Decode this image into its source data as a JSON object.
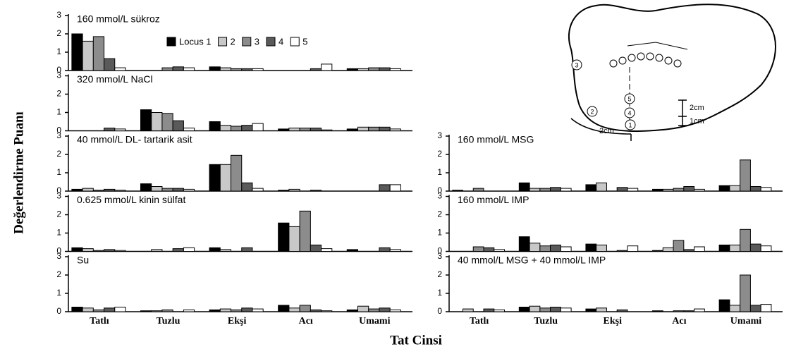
{
  "figure": {
    "y_label": "Değerlendirme Puanı",
    "x_label": "Tat Cinsi"
  },
  "tongue_diagram": {
    "locus_labels": [
      "1",
      "2",
      "3",
      "4",
      "5"
    ],
    "scale_labels": [
      "2cm",
      "1cm",
      "2cm"
    ]
  },
  "chart_data": [
    {
      "type": "bar",
      "title": "160 mmol/L sükroz",
      "ylim": [
        0,
        3
      ],
      "yticks": [
        0,
        1,
        2,
        3
      ],
      "series": [
        {
          "name": "Locus 1",
          "color": "#000000",
          "values": [
            2.0,
            0,
            0.2,
            0,
            0.1
          ]
        },
        {
          "name": "2",
          "color": "#c8c8c8",
          "values": [
            1.6,
            0,
            0.15,
            0,
            0.1
          ]
        },
        {
          "name": "3",
          "color": "#8c8c8c",
          "values": [
            1.85,
            0.15,
            0.1,
            0,
            0.15
          ]
        },
        {
          "name": "4",
          "color": "#5a5a5a",
          "values": [
            0.65,
            0.2,
            0.1,
            0.1,
            0.15
          ]
        },
        {
          "name": "5",
          "color": "#ffffff",
          "values": [
            0.15,
            0.15,
            0.1,
            0.35,
            0.1
          ]
        }
      ]
    },
    {
      "type": "bar",
      "title": "320 mmol/L NaCl",
      "ylim": [
        0,
        3
      ],
      "yticks": [
        0,
        1,
        2,
        3
      ],
      "series": [
        {
          "color": "#000000",
          "values": [
            0,
            1.15,
            0.5,
            0.1,
            0.1
          ]
        },
        {
          "color": "#c8c8c8",
          "values": [
            0,
            1.0,
            0.3,
            0.15,
            0.2
          ]
        },
        {
          "color": "#8c8c8c",
          "values": [
            0,
            0.95,
            0.25,
            0.15,
            0.2
          ]
        },
        {
          "color": "#5a5a5a",
          "values": [
            0.15,
            0.55,
            0.3,
            0.15,
            0.2
          ]
        },
        {
          "color": "#ffffff",
          "values": [
            0.1,
            0.15,
            0.4,
            0.05,
            0.1
          ]
        }
      ]
    },
    {
      "type": "bar",
      "title": "40 mmol/L DL- tartarik asit",
      "ylim": [
        0,
        3
      ],
      "yticks": [
        0,
        1,
        2,
        3
      ],
      "series": [
        {
          "color": "#000000",
          "values": [
            0.1,
            0.4,
            1.45,
            0.05,
            0
          ]
        },
        {
          "color": "#c8c8c8",
          "values": [
            0.15,
            0.25,
            1.45,
            0.1,
            0
          ]
        },
        {
          "color": "#8c8c8c",
          "values": [
            0.05,
            0.15,
            1.95,
            0,
            0
          ]
        },
        {
          "color": "#5a5a5a",
          "values": [
            0.1,
            0.15,
            0.45,
            0.05,
            0.35
          ]
        },
        {
          "color": "#ffffff",
          "values": [
            0.05,
            0.1,
            0.15,
            0,
            0.35
          ]
        }
      ]
    },
    {
      "type": "bar",
      "title": "0.625 mmol/L kinin sülfat",
      "ylim": [
        0,
        3
      ],
      "yticks": [
        0,
        1,
        2,
        3
      ],
      "series": [
        {
          "color": "#000000",
          "values": [
            0.2,
            0,
            0.2,
            1.55,
            0.1
          ]
        },
        {
          "color": "#c8c8c8",
          "values": [
            0.15,
            0.1,
            0.1,
            1.35,
            0
          ]
        },
        {
          "color": "#8c8c8c",
          "values": [
            0.05,
            0,
            0,
            2.2,
            0
          ]
        },
        {
          "color": "#5a5a5a",
          "values": [
            0.1,
            0.15,
            0.2,
            0.35,
            0.2
          ]
        },
        {
          "color": "#ffffff",
          "values": [
            0.05,
            0.2,
            0,
            0.15,
            0.1
          ]
        }
      ]
    },
    {
      "type": "bar",
      "title": "Su",
      "ylim": [
        0,
        3
      ],
      "yticks": [
        0,
        1,
        2,
        3
      ],
      "categories": [
        "Tatlı",
        "Tuzlu",
        "Ekşi",
        "Acı",
        "Umami"
      ],
      "series": [
        {
          "color": "#000000",
          "values": [
            0.25,
            0.05,
            0.1,
            0.35,
            0.1
          ]
        },
        {
          "color": "#c8c8c8",
          "values": [
            0.2,
            0.05,
            0.15,
            0.2,
            0.3
          ]
        },
        {
          "color": "#8c8c8c",
          "values": [
            0.1,
            0.1,
            0.1,
            0.35,
            0.15
          ]
        },
        {
          "color": "#5a5a5a",
          "values": [
            0.2,
            0,
            0.2,
            0.1,
            0.2
          ]
        },
        {
          "color": "#ffffff",
          "values": [
            0.25,
            0.1,
            0.15,
            0.05,
            0.1
          ]
        }
      ]
    },
    {
      "type": "bar",
      "title": "160 mmol/L MSG",
      "ylim": [
        0,
        3
      ],
      "yticks": [
        0,
        1,
        2,
        3
      ],
      "series": [
        {
          "color": "#000000",
          "values": [
            0.05,
            0.45,
            0.35,
            0.1,
            0.3
          ]
        },
        {
          "color": "#c8c8c8",
          "values": [
            0,
            0.15,
            0.45,
            0.1,
            0.3
          ]
        },
        {
          "color": "#8c8c8c",
          "values": [
            0.15,
            0.15,
            0,
            0.15,
            1.7
          ]
        },
        {
          "color": "#5a5a5a",
          "values": [
            0,
            0.2,
            0.2,
            0.25,
            0.25
          ]
        },
        {
          "color": "#ffffff",
          "values": [
            0,
            0.15,
            0.15,
            0.1,
            0.2
          ]
        }
      ]
    },
    {
      "type": "bar",
      "title": "160 mmol/L IMP",
      "ylim": [
        0,
        3
      ],
      "yticks": [
        0,
        1,
        2,
        3
      ],
      "series": [
        {
          "color": "#000000",
          "values": [
            0,
            0.8,
            0.4,
            0.05,
            0.35
          ]
        },
        {
          "color": "#c8c8c8",
          "values": [
            0,
            0.45,
            0.35,
            0.2,
            0.35
          ]
        },
        {
          "color": "#8c8c8c",
          "values": [
            0.25,
            0.3,
            0,
            0.6,
            1.2
          ]
        },
        {
          "color": "#5a5a5a",
          "values": [
            0.2,
            0.35,
            0.05,
            0.1,
            0.4
          ]
        },
        {
          "color": "#ffffff",
          "values": [
            0.1,
            0.25,
            0.3,
            0.25,
            0.3
          ]
        }
      ]
    },
    {
      "type": "bar",
      "title": "40 mmol/L MSG + 40 mmol/L IMP",
      "ylim": [
        0,
        3
      ],
      "yticks": [
        0,
        1,
        2,
        3
      ],
      "categories": [
        "Tatlı",
        "Tuzlu",
        "Ekşi",
        "Acı",
        "Umami"
      ],
      "series": [
        {
          "color": "#000000",
          "values": [
            0,
            0.25,
            0.15,
            0.05,
            0.65
          ]
        },
        {
          "color": "#c8c8c8",
          "values": [
            0.15,
            0.3,
            0.2,
            0,
            0.35
          ]
        },
        {
          "color": "#8c8c8c",
          "values": [
            0,
            0.2,
            0,
            0.05,
            2.0
          ]
        },
        {
          "color": "#5a5a5a",
          "values": [
            0.15,
            0.25,
            0.1,
            0.05,
            0.35
          ]
        },
        {
          "color": "#ffffff",
          "values": [
            0.1,
            0.2,
            0,
            0.15,
            0.4
          ]
        }
      ]
    }
  ]
}
